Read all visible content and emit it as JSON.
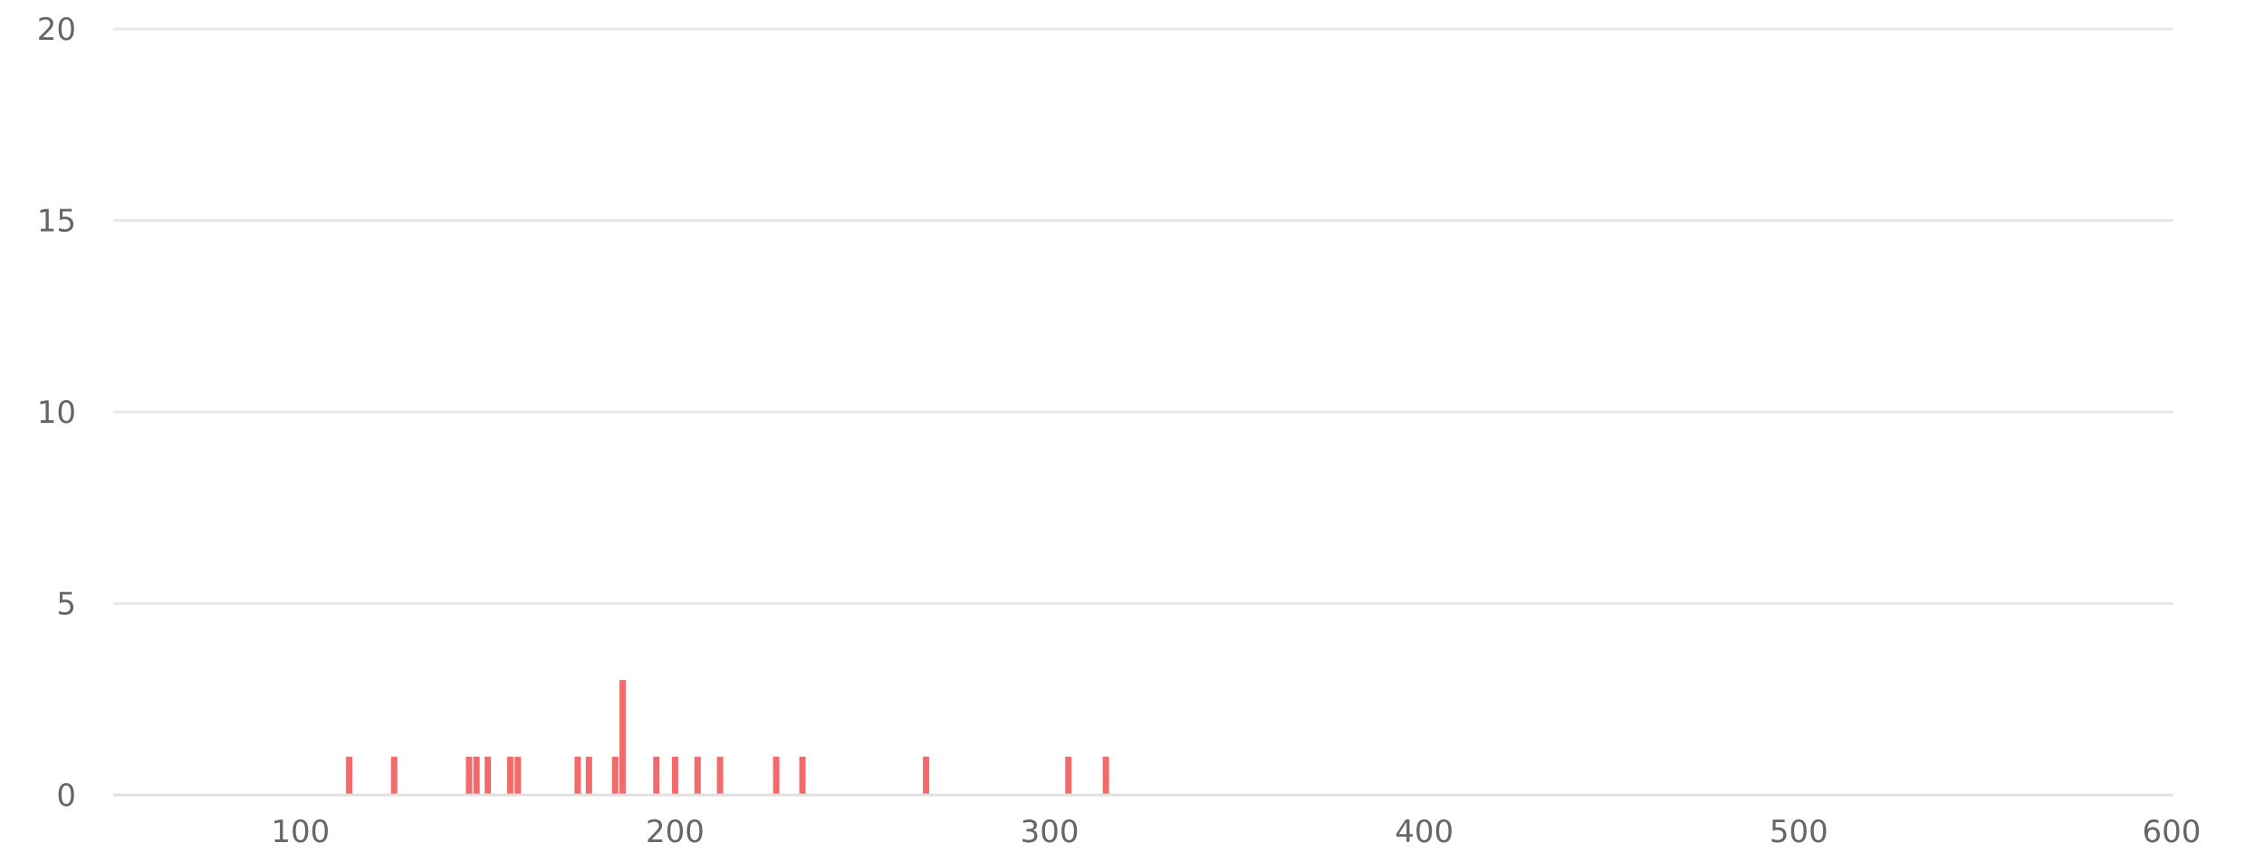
{
  "colors": {
    "bar": "#f26b6b",
    "grid": "#e8e8e8",
    "axis": "#e0e0e0",
    "tick_text": "#666666",
    "background": "#ffffff"
  },
  "chart_data": {
    "type": "bar",
    "title": "",
    "xlabel": "",
    "ylabel": "",
    "xlim": [
      50,
      600
    ],
    "ylim": [
      0,
      20
    ],
    "x_ticks": [
      100,
      200,
      300,
      400,
      500,
      600
    ],
    "y_ticks": [
      0,
      5,
      10,
      15,
      20
    ],
    "grid": true,
    "legend": "none",
    "bar_width": 1,
    "x": [
      113,
      125,
      145,
      147,
      150,
      156,
      158,
      174,
      177,
      184,
      186,
      195,
      200,
      206,
      212,
      227,
      234,
      267,
      305,
      315
    ],
    "values": [
      1,
      1,
      1,
      1,
      1,
      1,
      1,
      1,
      1,
      1,
      3,
      1,
      1,
      1,
      1,
      1,
      1,
      1,
      1,
      1
    ]
  }
}
